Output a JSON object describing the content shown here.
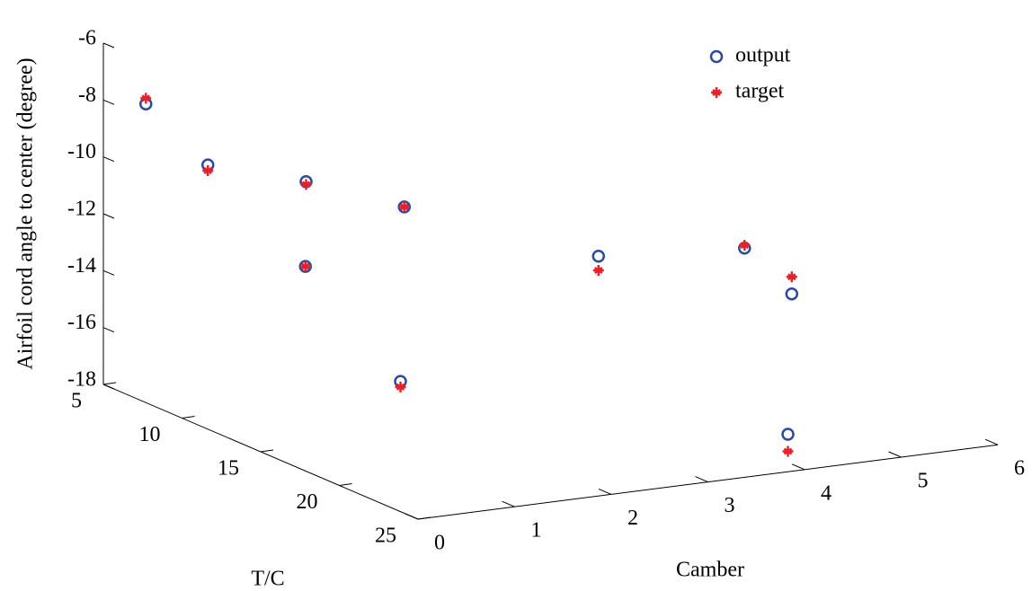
{
  "chart_data": {
    "type": "scatter3d",
    "xlabel": "Camber",
    "ylabel": "T/C",
    "zlabel": "Airfoil cord angle to center (degree)",
    "xlim": [
      0,
      6
    ],
    "xticks": [
      0,
      1,
      2,
      3,
      4,
      5,
      6
    ],
    "ylim": [
      5,
      25
    ],
    "yticks": [
      5,
      10,
      15,
      20,
      25
    ],
    "zlim": [
      -18,
      -6
    ],
    "zticks": [
      -6,
      -8,
      -10,
      -12,
      -14,
      -16,
      -18
    ],
    "legend": "top-right",
    "series": [
      {
        "name": "output",
        "color": "#2b4aa0",
        "marker": "circle",
        "x": [
          0,
          1,
          2,
          3,
          1,
          4,
          2,
          6,
          6,
          5
        ],
        "y": [
          7.7,
          5.5,
          5.6,
          5.7,
          11.7,
          11.9,
          11.6,
          8.9,
          11.9,
          17.8
        ],
        "z": [
          -7.5,
          -10.6,
          -11.6,
          -12.9,
          -12.7,
          -13.6,
          -17.2,
          -14.9,
          -15.8,
          -18.9
        ]
      },
      {
        "name": "target",
        "color": "#e8202a",
        "marker": "star",
        "x": [
          0,
          1,
          2,
          3,
          1,
          4,
          2,
          6,
          6,
          5
        ],
        "y": [
          7.7,
          5.5,
          5.6,
          5.7,
          11.7,
          11.9,
          11.6,
          8.9,
          11.9,
          17.8
        ],
        "z": [
          -7.3,
          -10.8,
          -11.7,
          -12.9,
          -12.7,
          -14.1,
          -17.4,
          -14.8,
          -15.2,
          -19.5
        ]
      }
    ]
  }
}
